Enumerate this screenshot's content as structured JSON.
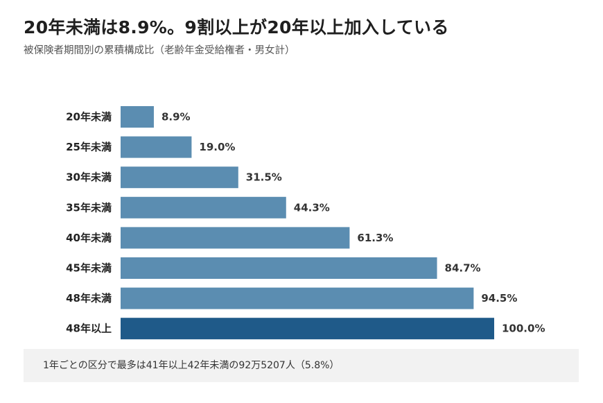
{
  "title": "20年未満は8.9%。9割以上が20年以上加入している",
  "subtitle": "被保険者期間別の累積構成比（老齢年金受給権者・男女計）",
  "note": "1年ごとの区分で最多は41年以上42年未満の92万5207人（5.8%）",
  "colors": {
    "bar": "#5b8db1",
    "bar_highlight": "#1f5a89"
  },
  "chart_data": {
    "type": "bar",
    "orientation": "horizontal",
    "categories": [
      "20年未満",
      "25年未満",
      "30年未満",
      "35年未満",
      "40年未満",
      "45年未満",
      "48年未満",
      "48年以上"
    ],
    "values": [
      8.9,
      19.0,
      31.5,
      44.3,
      61.3,
      84.7,
      94.5,
      100.0
    ],
    "value_labels": [
      "8.9%",
      "19.0%",
      "31.5%",
      "44.3%",
      "61.3%",
      "84.7%",
      "94.5%",
      "100.0%"
    ],
    "highlight_index": 7,
    "xlim": [
      0,
      100
    ],
    "grid": false,
    "legend": "none"
  }
}
